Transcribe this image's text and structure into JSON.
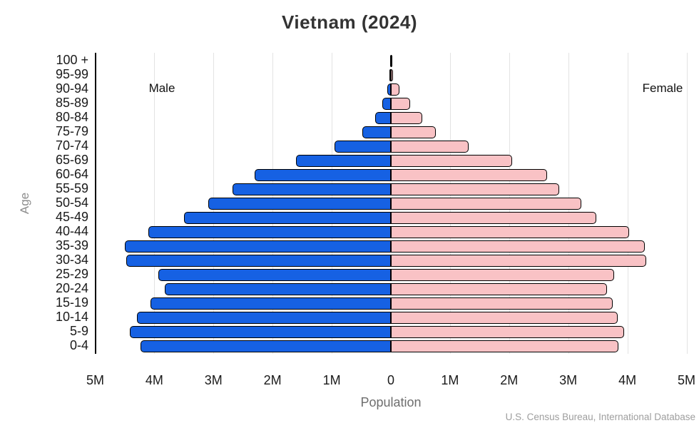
{
  "chart_data": {
    "type": "bar",
    "subtype": "population_pyramid",
    "title": "Vietnam (2024)",
    "xlabel": "Population",
    "ylabel": "Age",
    "side_labels": {
      "left": "Male",
      "right": "Female"
    },
    "x_ticks": [
      "5M",
      "4M",
      "3M",
      "2M",
      "1M",
      "0",
      "1M",
      "2M",
      "3M",
      "4M",
      "5M"
    ],
    "x_unit": "millions of people",
    "x_max_millions": 5,
    "grid": true,
    "legend_position": "in-plot side labels",
    "categories_top_to_bottom": [
      "100 +",
      "95-99",
      "90-94",
      "85-89",
      "80-84",
      "75-79",
      "70-74",
      "65-69",
      "60-64",
      "55-59",
      "50-54",
      "45-49",
      "40-44",
      "35-39",
      "30-34",
      "25-29",
      "20-24",
      "15-19",
      "10-14",
      "5-9",
      "0-4"
    ],
    "series": [
      {
        "name": "Male",
        "side": "left",
        "color": "#1661e3",
        "values_millions": [
          0.01,
          0.02,
          0.06,
          0.15,
          0.26,
          0.48,
          0.95,
          1.61,
          2.3,
          2.68,
          3.09,
          3.5,
          4.1,
          4.5,
          4.47,
          3.93,
          3.82,
          4.07,
          4.29,
          4.42,
          4.23
        ]
      },
      {
        "name": "Female",
        "side": "right",
        "color": "#f9c2c5",
        "values_millions": [
          0.01,
          0.04,
          0.15,
          0.33,
          0.53,
          0.76,
          1.32,
          2.05,
          2.64,
          2.85,
          3.22,
          3.47,
          4.03,
          4.3,
          4.32,
          3.77,
          3.66,
          3.75,
          3.84,
          3.95,
          3.85
        ]
      }
    ],
    "source": "U.S. Census Bureau, International Database",
    "colors": {
      "male_bar": "#1661e3",
      "female_bar": "#f9c2c5",
      "bar_outline": "#000000",
      "gridline": "#e3e3e3",
      "axis_line": "#000000",
      "title_text": "#333333",
      "tick_text": "#1a1a1a",
      "muted_text": "#6e6e6e",
      "source_text": "#9e9e9e",
      "background": "#ffffff"
    }
  }
}
